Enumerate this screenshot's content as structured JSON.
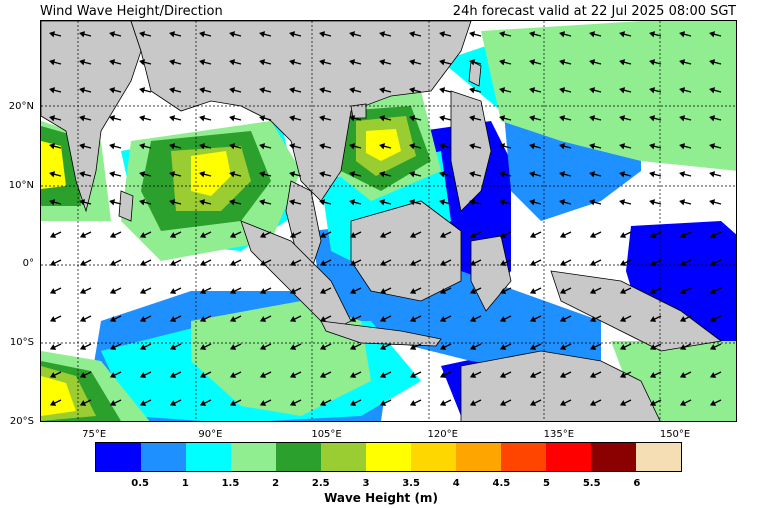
{
  "header": {
    "title": "Wind Wave Height/Direction",
    "valid_time": "24h forecast valid at 22 Jul 2025 08:00 SGT"
  },
  "map": {
    "lon_range": [
      68,
      158
    ],
    "lat_range": [
      -20,
      31
    ],
    "lat_ticks": [
      {
        "value": 20,
        "label": "20°N"
      },
      {
        "value": 10,
        "label": "10°N"
      },
      {
        "value": 0,
        "label": "0°"
      },
      {
        "value": -10,
        "label": "10°S"
      },
      {
        "value": -20,
        "label": "20°S"
      }
    ],
    "lon_ticks": [
      {
        "value": 75,
        "label": "75°E"
      },
      {
        "value": 90,
        "label": "90°E"
      },
      {
        "value": 105,
        "label": "105°E"
      },
      {
        "value": 120,
        "label": "120°E"
      },
      {
        "value": 135,
        "label": "135°E"
      },
      {
        "value": 150,
        "label": "150°E"
      }
    ],
    "colors": {
      "land": "#c8c8c8",
      "ocean_calm": "#ffffff",
      "grid": "#000000"
    }
  },
  "colorbar": {
    "label": "Wave Height (m)",
    "colors": [
      "#0000ff",
      "#1e90ff",
      "#00ffff",
      "#90ee90",
      "#2ca02c",
      "#9acd32",
      "#ffff00",
      "#ffd700",
      "#ffa500",
      "#ff4500",
      "#ff0000",
      "#8b0000",
      "#f5deb3"
    ],
    "ticks": [
      "0.5",
      "1",
      "1.5",
      "2",
      "2.5",
      "3",
      "3.5",
      "4",
      "4.5",
      "5",
      "5.5",
      "6"
    ]
  }
}
